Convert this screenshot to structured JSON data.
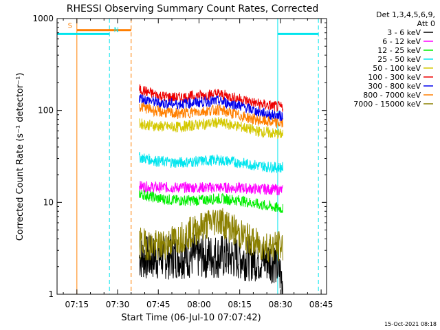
{
  "chart_data": {
    "type": "line",
    "title": "RHESSI Observing Summary Count Rates, Corrected",
    "xlabel": "Start Time (06-Jul-10 07:07:42)",
    "ylabel": "Corrected Count Rate (s⁻¹ detector⁻¹)",
    "yscale": "log",
    "ylim": [
      1,
      1000
    ],
    "xlim": [
      "07:07:42",
      "08:47:00"
    ],
    "x_tick_labels": [
      "07:15",
      "07:30",
      "07:45",
      "08:00",
      "08:15",
      "08:30",
      "08:45"
    ],
    "y_tick_labels": [
      "1",
      "10",
      "100",
      "1000"
    ],
    "grid": false,
    "legend": {
      "placement": "top-right",
      "header": [
        "Det 1,3,4,5,6,9,",
        "Att 0"
      ],
      "entries": [
        {
          "label": "3 - 6 keV",
          "color": "#000000"
        },
        {
          "label": "6 - 12 keV",
          "color": "#ff00ff"
        },
        {
          "label": "12 - 25 keV",
          "color": "#00ee00"
        },
        {
          "label": "25 - 50 keV",
          "color": "#00e5ee"
        },
        {
          "label": "50 - 100 keV",
          "color": "#d4c800"
        },
        {
          "label": "100 - 300 keV",
          "color": "#ee0000"
        },
        {
          "label": "300 - 800 keV",
          "color": "#0000ee"
        },
        {
          "label": "800 - 7000 keV",
          "color": "#ff7f00"
        },
        {
          "label": "7000 - 15000 keV",
          "color": "#8b8000"
        }
      ]
    },
    "series": [
      {
        "name": "3 - 6 keV",
        "color": "#000000",
        "x": [
          "07:38",
          "07:45",
          "07:52",
          "08:00",
          "08:07",
          "08:15",
          "08:22",
          "08:28",
          "08:31"
        ],
        "y": [
          2.5,
          2.5,
          2.6,
          2.6,
          2.6,
          2.5,
          2.4,
          2.3,
          1.4
        ]
      },
      {
        "name": "6 - 12 keV",
        "color": "#ff00ff",
        "x": [
          "07:38",
          "07:45",
          "07:52",
          "08:00",
          "08:07",
          "08:15",
          "08:22",
          "08:28",
          "08:31"
        ],
        "y": [
          15,
          14.5,
          14.5,
          14.5,
          14.5,
          14.3,
          14,
          13.8,
          13.5
        ]
      },
      {
        "name": "12 - 25 keV",
        "color": "#00ee00",
        "x": [
          "07:38",
          "07:45",
          "07:52",
          "08:00",
          "08:07",
          "08:15",
          "08:22",
          "08:28",
          "08:31"
        ],
        "y": [
          12.5,
          11,
          10.5,
          10.5,
          11,
          10.5,
          9.5,
          8.8,
          8.5
        ]
      },
      {
        "name": "25 - 50 keV",
        "color": "#00e5ee",
        "x": [
          "07:38",
          "07:45",
          "07:52",
          "08:00",
          "08:07",
          "08:15",
          "08:22",
          "08:28",
          "08:31"
        ],
        "y": [
          31,
          28,
          27,
          28,
          29,
          27,
          25,
          24,
          24
        ]
      },
      {
        "name": "50 - 100 keV",
        "color": "#d4c800",
        "x": [
          "07:38",
          "07:45",
          "07:52",
          "08:00",
          "08:07",
          "08:15",
          "08:22",
          "08:28",
          "08:31"
        ],
        "y": [
          72,
          67,
          66,
          70,
          74,
          67,
          59,
          56,
          55
        ]
      },
      {
        "name": "100 - 300 keV",
        "color": "#ee0000",
        "x": [
          "07:38",
          "07:45",
          "07:52",
          "08:00",
          "08:07",
          "08:15",
          "08:22",
          "08:28",
          "08:31"
        ],
        "y": [
          170,
          145,
          137,
          145,
          152,
          133,
          118,
          111,
          108
        ]
      },
      {
        "name": "300 - 800 keV",
        "color": "#0000ee",
        "x": [
          "07:38",
          "07:45",
          "07:52",
          "08:00",
          "08:07",
          "08:15",
          "08:22",
          "08:28",
          "08:31"
        ],
        "y": [
          137,
          121,
          117,
          123,
          127,
          113,
          96,
          88,
          86
        ]
      },
      {
        "name": "800 - 7000 keV",
        "color": "#ff7f00",
        "x": [
          "07:38",
          "07:45",
          "07:52",
          "08:00",
          "08:07",
          "08:15",
          "08:22",
          "08:28",
          "08:31"
        ],
        "y": [
          111,
          97,
          92,
          97,
          102,
          88,
          78,
          73,
          72
        ]
      },
      {
        "name": "7000 - 15000 keV",
        "color": "#8b8000",
        "x": [
          "07:38",
          "07:45",
          "07:52",
          "08:00",
          "08:07",
          "08:15",
          "08:22",
          "08:28",
          "08:31"
        ],
        "y": [
          3.6,
          3.3,
          4.0,
          5.2,
          6.6,
          4.5,
          3.4,
          3.3,
          3.3
        ]
      }
    ],
    "annotations": [
      {
        "label": "S",
        "color": "#ff7f00",
        "x_start": "07:15",
        "x_end": "07:35",
        "level": 750
      },
      {
        "label": "N",
        "color": "#00e5ee",
        "x_start": "07:07:42",
        "x_end": "07:27",
        "level": 680
      },
      {
        "label": "",
        "color": "#00e5ee",
        "x_start": "08:29",
        "x_end": "08:44",
        "level": 680
      }
    ],
    "vertical_markers": [
      {
        "x": "07:15",
        "color": "#ff7f00",
        "style": "solid"
      },
      {
        "x": "07:27",
        "color": "#00e5ee",
        "style": "dashed"
      },
      {
        "x": "07:35",
        "color": "#ff7f00",
        "style": "dashed"
      },
      {
        "x": "08:29",
        "color": "#00e5ee",
        "style": "solid"
      },
      {
        "x": "08:44",
        "color": "#00e5ee",
        "style": "dashed"
      }
    ]
  },
  "footer": {
    "timestamp": "15-Oct-2021 08:18"
  }
}
